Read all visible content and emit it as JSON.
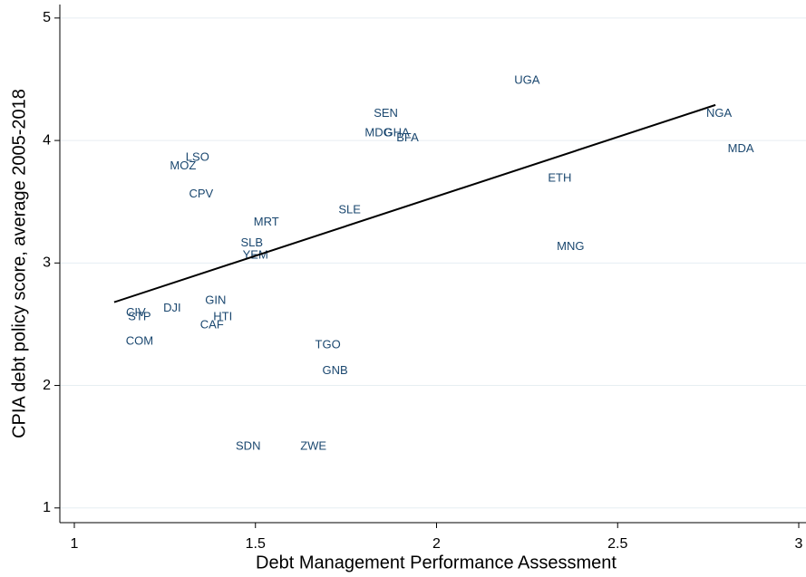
{
  "chart_data": {
    "type": "scatter",
    "x_label": "Debt Management Performance Assessment",
    "y_label": "CPIA debt policy score, average 2005-2018",
    "labels": [
      "UGA",
      "SEN",
      "MDG",
      "GHA",
      "BFA",
      "NGA",
      "MDA",
      "ETH",
      "MNG",
      "SLE",
      "LSO",
      "MOZ",
      "CPV",
      "MRT",
      "SLB",
      "YEM",
      "GIN",
      "DJI",
      "HTI",
      "CAF",
      "CIV",
      "STP",
      "COM",
      "TGO",
      "GNB",
      "SDN",
      "ZWE"
    ],
    "x": [
      2.25,
      1.86,
      1.84,
      1.89,
      1.92,
      2.78,
      2.84,
      2.34,
      2.37,
      1.76,
      1.34,
      1.3,
      1.35,
      1.53,
      1.49,
      1.5,
      1.39,
      1.27,
      1.41,
      1.38,
      1.17,
      1.18,
      1.18,
      1.7,
      1.72,
      1.48,
      1.66
    ],
    "y": [
      4.49,
      4.22,
      4.06,
      4.06,
      4.02,
      4.22,
      3.93,
      3.69,
      3.13,
      3.43,
      3.86,
      3.79,
      3.56,
      3.33,
      3.16,
      3.06,
      2.69,
      2.63,
      2.56,
      2.49,
      2.59,
      2.56,
      2.36,
      2.33,
      2.12,
      1.5,
      1.5
    ],
    "label_color": "#1a476f",
    "fit_line": {
      "x": [
        1.11,
        2.77
      ],
      "y": [
        2.68,
        4.29
      ],
      "color": "#000000"
    },
    "xlim": [
      0.96,
      3.02
    ],
    "xticks": [
      1,
      1.5,
      2,
      2.5,
      3
    ],
    "ylim": [
      0.88,
      5.11
    ],
    "yticks": [
      1,
      2,
      3,
      4,
      5
    ],
    "grid": true
  }
}
